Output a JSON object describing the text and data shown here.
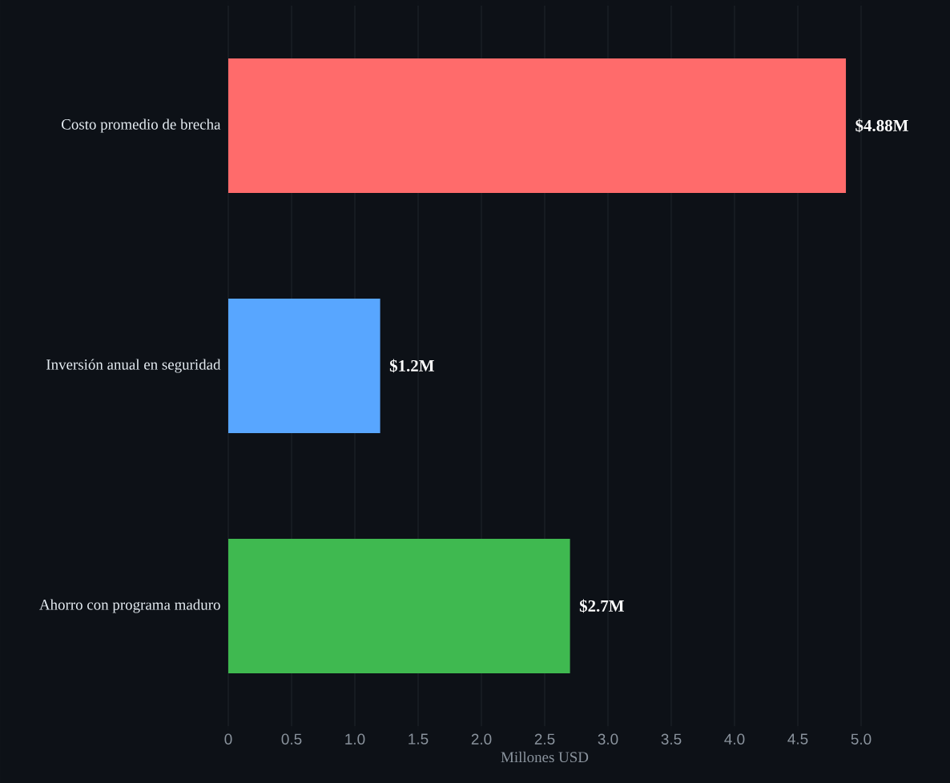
{
  "chart_data": {
    "type": "bar",
    "orientation": "horizontal",
    "xlabel": "Millones USD",
    "categories": [
      "Costo promedio de brecha",
      "Inversión anual en seguridad",
      "Ahorro con programa maduro"
    ],
    "values": [
      4.88,
      1.2,
      2.7
    ],
    "colors": [
      "#ff6b6b",
      "#58a6ff",
      "#3fb950"
    ],
    "value_labels": [
      "$4.88M",
      "$1.2M",
      "$2.7M"
    ],
    "xlim": [
      0,
      5
    ],
    "xticks": [
      0,
      0.5,
      {
        "value": 1,
        "label": "1.0"
      },
      1.5,
      {
        "value": 2,
        "label": "2.0"
      },
      2.5,
      {
        "value": 3,
        "label": "3.0"
      },
      3.5,
      {
        "value": 4,
        "label": "4.0"
      },
      4.5,
      {
        "value": 5,
        "label": "5.0"
      }
    ],
    "grid": "x"
  }
}
